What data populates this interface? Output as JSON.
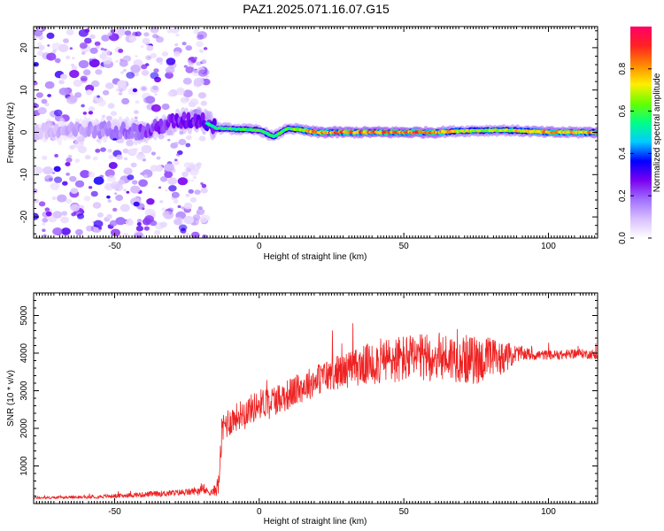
{
  "figure": {
    "title": "PAZ1.2025.071.16.07.G15"
  },
  "chart_data": [
    {
      "type": "heatmap",
      "title": "PAZ1.2025.071.16.07.G15",
      "xlabel": "Height of straight line (km)",
      "ylabel": "Frequency (Hz)",
      "xlim": [
        -78,
        117
      ],
      "ylim": [
        -25,
        25
      ],
      "xticks": [
        -50,
        0,
        50,
        100
      ],
      "yticks": [
        -20,
        -10,
        0,
        10,
        20
      ],
      "colorbar": {
        "label": "Normalized spectral amplitude",
        "range": [
          0,
          1
        ],
        "ticks": [
          0.0,
          0.2,
          0.4,
          0.6,
          0.8
        ],
        "colormap": [
          "#ffffff",
          "#d9bfff",
          "#a070ff",
          "#7a00f0",
          "#0000ff",
          "#00ccff",
          "#00ff88",
          "#66ff00",
          "#ffee00",
          "#ff8800",
          "#ff2222",
          "#ff0066"
        ]
      },
      "ridge": {
        "description_points": [
          {
            "x": -78,
            "y": 0.0,
            "amp": 0.15
          },
          {
            "x": -50,
            "y": 0.7,
            "amp": 0.3
          },
          {
            "x": -40,
            "y": 0.0,
            "amp": 0.4
          },
          {
            "x": -30,
            "y": 2.5,
            "amp": 0.45
          },
          {
            "x": -20,
            "y": 3.0,
            "amp": 0.5
          },
          {
            "x": -15,
            "y": 1.0,
            "amp": 0.55
          },
          {
            "x": 0,
            "y": 0.5,
            "amp": 0.6
          },
          {
            "x": 5,
            "y": -1.0,
            "amp": 0.55
          },
          {
            "x": 10,
            "y": 1.0,
            "amp": 0.6
          },
          {
            "x": 20,
            "y": 0.0,
            "amp": 0.85
          },
          {
            "x": 60,
            "y": 0.0,
            "amp": 0.85
          },
          {
            "x": 70,
            "y": 0.3,
            "amp": 0.7
          },
          {
            "x": 85,
            "y": 0.5,
            "amp": 0.7
          },
          {
            "x": 100,
            "y": 0.0,
            "amp": 0.8
          },
          {
            "x": 117,
            "y": 0.0,
            "amp": 0.8
          }
        ]
      },
      "noise_region": {
        "x_from": -78,
        "x_to": -18
      }
    },
    {
      "type": "line",
      "xlabel": "Height of straight line (km)",
      "ylabel": "SNR (10 * v/v)",
      "xlim": [
        -78,
        117
      ],
      "ylim": [
        0,
        5600
      ],
      "xticks": [
        -50,
        0,
        50,
        100
      ],
      "yticks": [
        1000,
        2000,
        3000,
        4000,
        5000
      ],
      "color": "#ee2222",
      "series": [
        {
          "x": [
            -78,
            -60,
            -45,
            -35,
            -25,
            -20,
            -16,
            -14,
            -13,
            -12,
            -10,
            -8,
            -5,
            -2,
            0,
            5,
            10,
            15,
            20,
            25,
            30,
            35,
            40,
            45,
            50,
            55,
            60,
            65,
            70,
            75,
            80,
            85,
            90,
            95,
            100,
            105,
            110,
            117
          ],
          "values": [
            150,
            170,
            220,
            260,
            300,
            360,
            300,
            500,
            1800,
            2100,
            2200,
            2300,
            2450,
            2550,
            2650,
            2750,
            2900,
            3100,
            3300,
            3450,
            3550,
            3650,
            3750,
            3800,
            3850,
            3850,
            3900,
            3900,
            3850,
            3800,
            3850,
            3900,
            4000,
            3950,
            3950,
            3950,
            4000,
            3950
          ],
          "noise": [
            30,
            40,
            60,
            80,
            90,
            110,
            100,
            300,
            450,
            450,
            400,
            380,
            380,
            400,
            400,
            420,
            420,
            420,
            430,
            450,
            480,
            520,
            600,
            650,
            650,
            650,
            650,
            650,
            650,
            650,
            600,
            400,
            200,
            150,
            130,
            130,
            120,
            130
          ]
        }
      ]
    }
  ]
}
